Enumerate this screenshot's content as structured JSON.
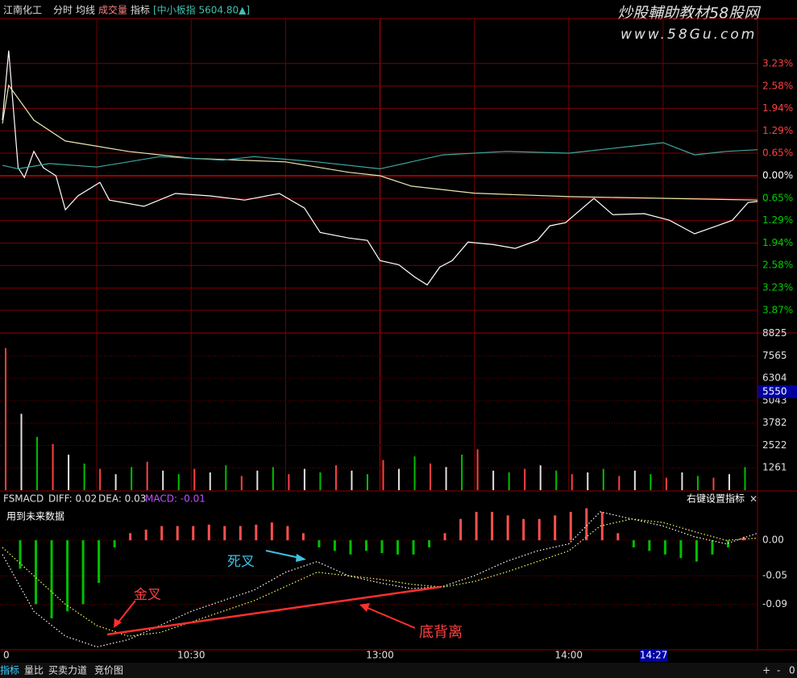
{
  "header": {
    "stock": "江南化工",
    "tabs": [
      "分时",
      "均线",
      "成交量",
      "指标"
    ],
    "index_info": "[中小板指 5604.80▲]"
  },
  "watermark": {
    "title": "炒股輔助教材58股网",
    "url": "www.58Gu.com"
  },
  "time_axis": {
    "xlim": [
      0,
      240
    ],
    "xticks": [
      {
        "value": 0,
        "label": "0"
      },
      {
        "value": 60,
        "label": "10:30"
      },
      {
        "value": 120,
        "label": "13:00"
      },
      {
        "value": 180,
        "label": "14:00"
      }
    ],
    "xgrid": [
      30,
      60,
      90,
      120,
      150,
      180,
      210
    ],
    "cursor": {
      "value": 207,
      "label": "14:27"
    }
  },
  "chart_data": [
    {
      "type": "line",
      "ylim": [
        -4.5,
        4.5
      ],
      "grid": true,
      "yticks": [
        {
          "value": 3.23,
          "label": "3.23%"
        },
        {
          "value": 2.58,
          "label": "2.58%"
        },
        {
          "value": 1.94,
          "label": "1.94%"
        },
        {
          "value": 1.29,
          "label": "1.29%"
        },
        {
          "value": 0.65,
          "label": "0.65%"
        },
        {
          "value": 0,
          "label": "0.00%"
        },
        {
          "value": -0.65,
          "label": "0.65%"
        },
        {
          "value": -1.29,
          "label": "1.29%"
        },
        {
          "value": -1.94,
          "label": "1.94%"
        },
        {
          "value": -2.58,
          "label": "2.58%"
        },
        {
          "value": -3.23,
          "label": "3.23%"
        },
        {
          "value": -3.87,
          "label": "3.87%"
        }
      ],
      "series": [
        {
          "color": "#ffffff",
          "x": [
            0,
            2,
            5,
            7,
            10,
            13,
            17,
            20,
            24,
            31,
            34,
            45,
            55,
            66,
            77,
            88,
            96,
            101,
            110,
            116,
            120,
            126,
            131,
            135,
            139,
            143,
            148,
            156,
            163,
            170,
            174,
            179,
            188,
            194,
            204,
            212,
            220,
            225,
            232,
            237,
            240
          ],
          "values": [
            1.6,
            3.6,
            0.23,
            -0.05,
            0.7,
            0.23,
            0,
            -0.98,
            -0.58,
            -0.19,
            -0.7,
            -0.88,
            -0.51,
            -0.58,
            -0.7,
            -0.51,
            -0.93,
            -1.63,
            -1.79,
            -1.86,
            -2.44,
            -2.56,
            -2.91,
            -3.14,
            -2.63,
            -2.44,
            -1.91,
            -1.98,
            -2.09,
            -1.86,
            -1.44,
            -1.35,
            -0.65,
            -1.12,
            -1.09,
            -1.28,
            -1.67,
            -1.51,
            -1.28,
            -0.77,
            -0.74
          ]
        },
        {
          "color": "#e8e8b0",
          "x": [
            0,
            2,
            10,
            20,
            40,
            60,
            90,
            110,
            120,
            130,
            150,
            180,
            210,
            240
          ],
          "values": [
            1.5,
            2.6,
            1.6,
            1.0,
            0.7,
            0.5,
            0.4,
            0.1,
            0,
            -0.3,
            -0.5,
            -0.6,
            -0.65,
            -0.7
          ]
        },
        {
          "color": "#3fa8a0",
          "x": [
            0,
            5,
            15,
            30,
            50,
            70,
            80,
            100,
            120,
            140,
            160,
            180,
            200,
            210,
            220,
            230,
            240
          ],
          "values": [
            0.3,
            0.2,
            0.35,
            0.25,
            0.55,
            0.45,
            0.55,
            0.4,
            0.2,
            0.6,
            0.7,
            0.65,
            0.85,
            0.95,
            0.6,
            0.7,
            0.75
          ]
        }
      ]
    },
    {
      "type": "bar",
      "ylim": [
        0,
        8900
      ],
      "yticks": [
        1261,
        2522,
        3782,
        5043,
        6304,
        7565,
        8825
      ],
      "colors": [
        "#ff4040",
        "#e0e0e0",
        "#00c000"
      ],
      "current_value": 5550,
      "x": [
        0,
        5,
        10,
        15,
        20,
        25,
        30,
        35,
        40,
        45,
        50,
        55,
        60,
        65,
        70,
        75,
        80,
        85,
        90,
        95,
        100,
        105,
        110,
        115,
        120,
        125,
        130,
        135,
        140,
        145,
        150,
        155,
        160,
        165,
        170,
        175,
        180,
        185,
        190,
        195,
        200,
        205,
        210,
        215,
        220,
        225,
        230,
        235
      ],
      "values": [
        8000,
        4300,
        3000,
        2600,
        2000,
        1500,
        1200,
        900,
        1300,
        1600,
        1100,
        900,
        1200,
        1000,
        1400,
        800,
        1100,
        1300,
        900,
        1200,
        1000,
        1400,
        1100,
        900,
        1700,
        1200,
        1900,
        1500,
        1300,
        2000,
        2300,
        1100,
        1000,
        1200,
        1400,
        1100,
        900,
        1000,
        1200,
        800,
        1100,
        900,
        700,
        1000,
        800,
        700,
        900,
        1300
      ]
    },
    {
      "type": "macd",
      "title": "FSMACD",
      "stats": [
        "DIFF: 0.02",
        "DEA: 0.03",
        "MACD: -0.01"
      ],
      "note": "用到未来数据",
      "hint": "右键设置指标",
      "close": "×",
      "ylim": [
        -0.153,
        0.066
      ],
      "yticks": [
        {
          "value": 0,
          "label": "0.00"
        },
        -0.05,
        -0.09
      ],
      "x": [
        0,
        5,
        10,
        15,
        20,
        25,
        30,
        35,
        40,
        45,
        50,
        55,
        60,
        65,
        70,
        75,
        80,
        85,
        90,
        95,
        100,
        105,
        110,
        115,
        120,
        125,
        130,
        135,
        140,
        145,
        150,
        155,
        160,
        165,
        170,
        175,
        180,
        185,
        190,
        195,
        200,
        205,
        210,
        215,
        220,
        225,
        230,
        235
      ],
      "values": [
        0,
        -0.04,
        -0.09,
        -0.11,
        -0.1,
        -0.09,
        -0.06,
        -0.01,
        0.01,
        0.015,
        0.02,
        0.02,
        0.02,
        0.022,
        0.02,
        0.02,
        0.022,
        0.025,
        0.02,
        0.01,
        -0.01,
        -0.015,
        -0.02,
        -0.015,
        -0.018,
        -0.02,
        -0.02,
        -0.01,
        0.01,
        0.03,
        0.04,
        0.04,
        0.035,
        0.03,
        0.03,
        0.035,
        0.04,
        0.045,
        0.04,
        0.01,
        -0.01,
        -0.015,
        -0.02,
        -0.025,
        -0.03,
        -0.02,
        -0.01,
        0.005
      ],
      "series": [
        {
          "color": "#ffffff",
          "x": [
            0,
            10,
            20,
            30,
            40,
            50,
            60,
            70,
            80,
            90,
            100,
            110,
            120,
            130,
            140,
            150,
            160,
            170,
            180,
            190,
            200,
            210,
            220,
            230,
            240
          ],
          "values": [
            -0.02,
            -0.1,
            -0.135,
            -0.15,
            -0.14,
            -0.12,
            -0.1,
            -0.085,
            -0.07,
            -0.045,
            -0.03,
            -0.05,
            -0.06,
            -0.068,
            -0.065,
            -0.05,
            -0.03,
            -0.015,
            -0.005,
            0.04,
            0.03,
            0.02,
            0.005,
            -0.005,
            0.01
          ]
        },
        {
          "color": "#ffff60",
          "x": [
            0,
            10,
            20,
            30,
            40,
            50,
            60,
            70,
            80,
            90,
            100,
            110,
            120,
            130,
            140,
            150,
            160,
            170,
            180,
            190,
            200,
            210,
            220,
            230,
            240
          ],
          "values": [
            -0.01,
            -0.05,
            -0.09,
            -0.12,
            -0.135,
            -0.13,
            -0.115,
            -0.1,
            -0.085,
            -0.065,
            -0.045,
            -0.05,
            -0.055,
            -0.062,
            -0.066,
            -0.058,
            -0.045,
            -0.03,
            -0.015,
            0.02,
            0.03,
            0.025,
            0.012,
            0,
            0.003
          ]
        }
      ],
      "annotations": [
        {
          "text": "金叉",
          "color": "#ff4040"
        },
        {
          "text": "死叉",
          "color": "#40c0e0"
        },
        {
          "text": "底背离",
          "color": "#ff4040"
        }
      ]
    }
  ],
  "bottom_tabs": [
    "指标",
    "量比",
    "买卖力道",
    "竞价图"
  ],
  "zoom_buttons": [
    "+",
    "-",
    "0"
  ]
}
